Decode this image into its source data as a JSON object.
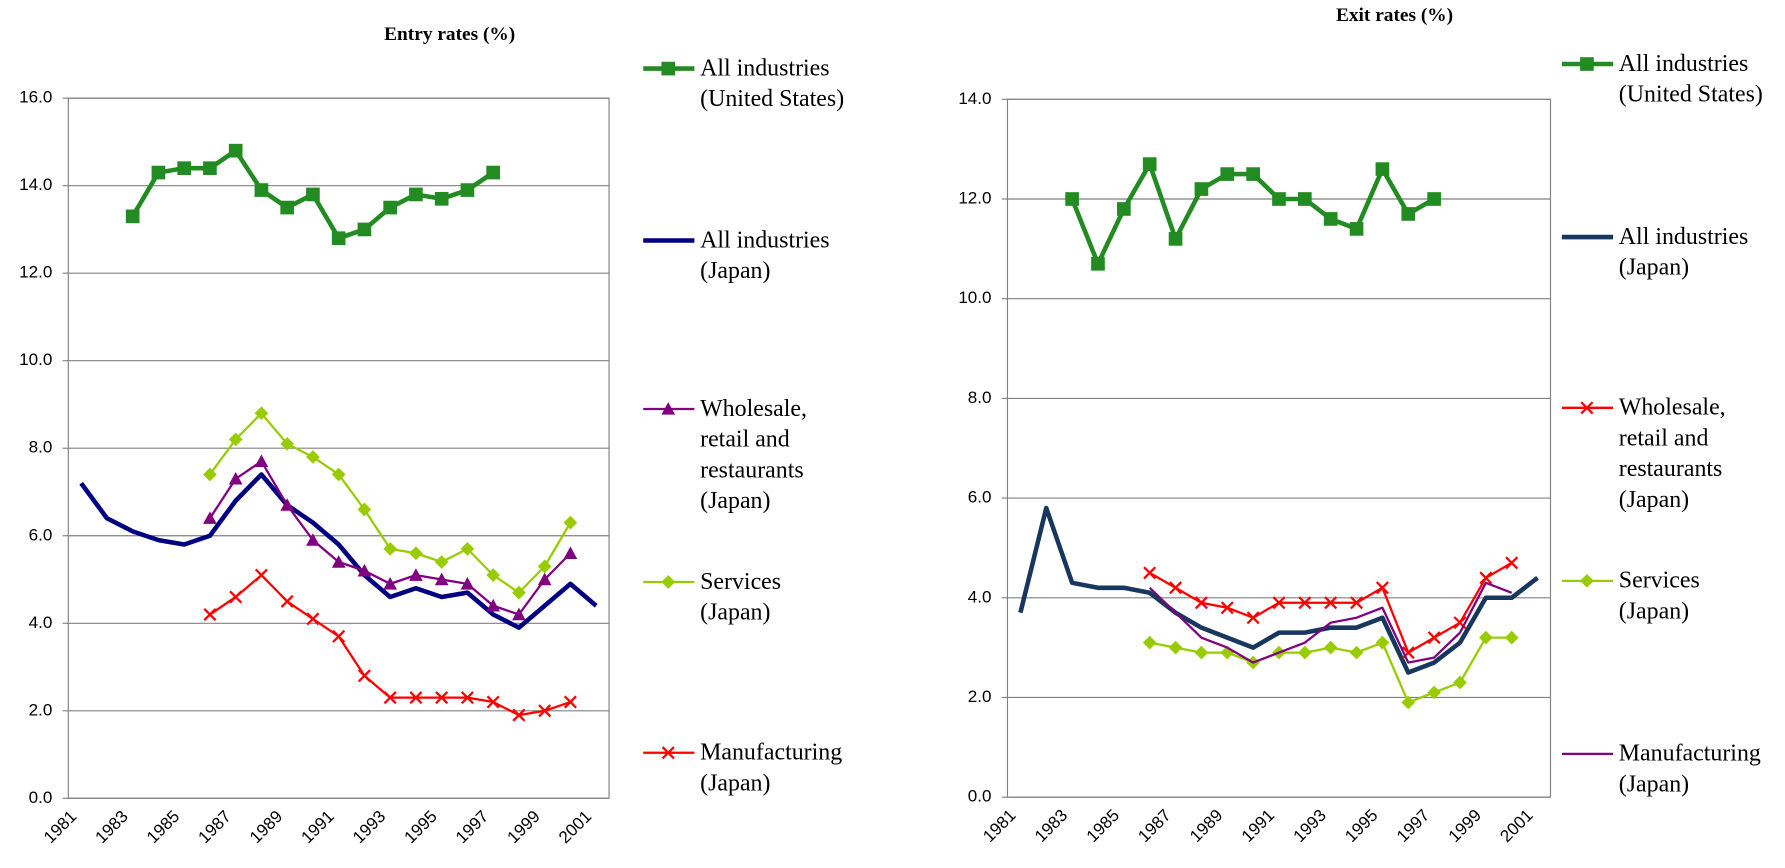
{
  "chart_data": [
    {
      "type": "line",
      "title": "Entry rates (%)",
      "categories": [
        "1981",
        null,
        "1983",
        null,
        "1985",
        null,
        "1987",
        null,
        "1989",
        null,
        "1991",
        null,
        "1993",
        null,
        "1995",
        null,
        "1997",
        null,
        "1999",
        null,
        "2001"
      ],
      "series": [
        {
          "name": "All industries (United States)",
          "color": "#228b22",
          "marker": "square",
          "values": [
            null,
            null,
            13.3,
            14.3,
            14.4,
            14.4,
            14.8,
            13.9,
            13.5,
            13.8,
            12.8,
            13.0,
            13.5,
            13.8,
            13.7,
            13.9,
            14.3,
            null,
            null,
            null,
            null
          ]
        },
        {
          "name": "All industries (Japan)",
          "color": "#000080",
          "marker": "none",
          "values": [
            7.2,
            6.4,
            6.1,
            5.9,
            5.8,
            6.0,
            6.8,
            7.4,
            6.7,
            6.3,
            5.8,
            5.1,
            4.6,
            4.8,
            4.6,
            4.7,
            4.2,
            3.9,
            4.4,
            4.9,
            4.4
          ]
        },
        {
          "name": "Wholesale, retail and restaurants (Japan)",
          "color": "#800080",
          "marker": "triangle",
          "values": [
            null,
            null,
            null,
            null,
            null,
            6.4,
            7.3,
            7.7,
            6.7,
            5.9,
            5.4,
            5.2,
            4.9,
            5.1,
            5.0,
            4.9,
            4.4,
            4.2,
            5.0,
            5.6,
            null
          ]
        },
        {
          "name": "Services (Japan)",
          "color": "#99cc00",
          "marker": "diamond",
          "values": [
            null,
            null,
            null,
            null,
            null,
            7.4,
            8.2,
            8.8,
            8.1,
            7.8,
            7.4,
            6.6,
            5.7,
            5.6,
            5.4,
            5.7,
            5.1,
            4.7,
            5.3,
            6.3,
            null
          ]
        },
        {
          "name": "Manufacturing (Japan)",
          "color": "#ff0000",
          "marker": "x",
          "values": [
            null,
            null,
            null,
            null,
            null,
            4.2,
            4.6,
            5.1,
            4.5,
            4.1,
            3.7,
            2.8,
            2.3,
            2.3,
            2.3,
            2.3,
            2.2,
            1.9,
            2.0,
            2.2,
            null
          ]
        }
      ],
      "ylim": [
        0,
        16
      ],
      "yticks": [
        {
          "value": 0,
          "label": "0.0"
        },
        {
          "value": 2,
          "label": "2.0"
        },
        {
          "value": 4,
          "label": "4.0"
        },
        {
          "value": 6,
          "label": "6.0"
        },
        {
          "value": 8,
          "label": "8.0"
        },
        {
          "value": 10,
          "label": "10.0"
        },
        {
          "value": 12,
          "label": "12.0"
        },
        {
          "value": 14,
          "label": "14.0"
        },
        {
          "value": 16,
          "label": "16.0"
        }
      ],
      "grid": true,
      "legend": "right"
    },
    {
      "type": "line",
      "title": "Exit rates (%)",
      "categories": [
        "1981",
        null,
        "1983",
        null,
        "1985",
        null,
        "1987",
        null,
        "1989",
        null,
        "1991",
        null,
        "1993",
        null,
        "1995",
        null,
        "1997",
        null,
        "1999",
        null,
        "2001"
      ],
      "series": [
        {
          "name": "All industries (United States)",
          "color": "#228b22",
          "marker": "square",
          "values": [
            null,
            null,
            12.0,
            10.7,
            11.8,
            12.7,
            11.2,
            12.2,
            12.5,
            12.5,
            12.0,
            12.0,
            11.6,
            11.4,
            12.6,
            11.7,
            12.0,
            null,
            null,
            null,
            null
          ]
        },
        {
          "name": "All industries (Japan)",
          "color": "#17375e",
          "marker": "none",
          "values": [
            3.7,
            5.8,
            4.3,
            4.2,
            4.2,
            4.1,
            3.7,
            3.4,
            3.2,
            3.0,
            3.3,
            3.3,
            3.4,
            3.4,
            3.6,
            2.5,
            2.7,
            3.1,
            4.0,
            4.0,
            4.4
          ]
        },
        {
          "name": "Wholesale, retail and restaurants (Japan)",
          "color": "#ff0000",
          "marker": "x",
          "values": [
            null,
            null,
            null,
            null,
            null,
            4.5,
            4.2,
            3.9,
            3.8,
            3.6,
            3.9,
            3.9,
            3.9,
            3.9,
            4.2,
            2.9,
            3.2,
            3.5,
            4.4,
            4.7,
            null
          ]
        },
        {
          "name": "Services (Japan)",
          "color": "#99cc00",
          "marker": "diamond",
          "values": [
            null,
            null,
            null,
            null,
            null,
            3.1,
            3.0,
            2.9,
            2.9,
            2.7,
            2.9,
            2.9,
            3.0,
            2.9,
            3.1,
            1.9,
            2.1,
            2.3,
            3.2,
            3.2,
            null
          ]
        },
        {
          "name": "Manufacturing (Japan)",
          "color": "#800080",
          "marker": "none",
          "values": [
            null,
            null,
            null,
            null,
            null,
            4.2,
            3.7,
            3.2,
            3.0,
            2.7,
            2.9,
            3.1,
            3.5,
            3.6,
            3.8,
            2.7,
            2.8,
            3.3,
            4.3,
            4.1,
            null
          ]
        }
      ],
      "ylim": [
        0,
        14
      ],
      "yticks": [
        {
          "value": 0,
          "label": "0.0"
        },
        {
          "value": 2,
          "label": "2.0"
        },
        {
          "value": 4,
          "label": "4.0"
        },
        {
          "value": 6,
          "label": "6.0"
        },
        {
          "value": 8,
          "label": "8.0"
        },
        {
          "value": 10,
          "label": "10.0"
        },
        {
          "value": 12,
          "label": "12.0"
        },
        {
          "value": 14,
          "label": "14.0"
        }
      ],
      "grid": true,
      "legend": "right"
    }
  ]
}
